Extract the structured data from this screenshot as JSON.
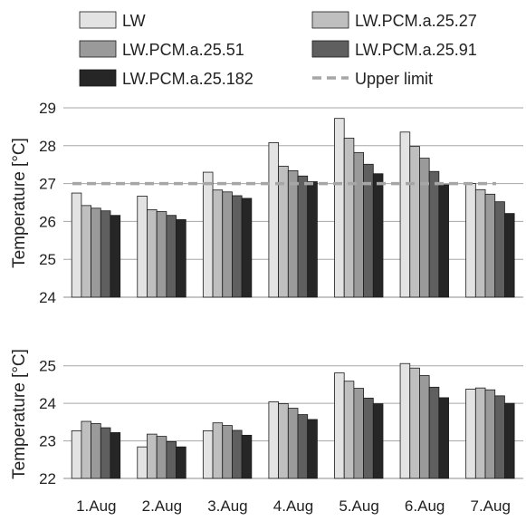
{
  "legend": {
    "entries": [
      {
        "label": "LW",
        "color": "#e3e3e3",
        "kind": "box"
      },
      {
        "label": "LW.PCM.a.25.27",
        "color": "#bfbfbf",
        "kind": "box"
      },
      {
        "label": "LW.PCM.a.25.51",
        "color": "#9a9a9a",
        "kind": "box"
      },
      {
        "label": "LW.PCM.a.25.91",
        "color": "#5f5f5f",
        "kind": "box"
      },
      {
        "label": "LW.PCM.a.25.182",
        "color": "#262626",
        "kind": "box"
      },
      {
        "label": "Upper limit",
        "color": "#a6a6a6",
        "kind": "dash"
      }
    ]
  },
  "chart_data": [
    {
      "type": "bar",
      "categories": [
        "1.Aug",
        "2.Aug",
        "3.Aug",
        "4.Aug",
        "5.Aug",
        "6.Aug",
        "7.Aug"
      ],
      "series": [
        {
          "name": "LW",
          "color": "#e3e3e3",
          "values": [
            26.75,
            26.67,
            27.3,
            28.08,
            28.72,
            28.36,
            27.0
          ]
        },
        {
          "name": "LW.PCM.a.25.27",
          "color": "#bfbfbf",
          "values": [
            26.42,
            26.31,
            26.83,
            27.46,
            28.2,
            27.98,
            26.84
          ]
        },
        {
          "name": "LW.PCM.a.25.51",
          "color": "#9a9a9a",
          "values": [
            26.35,
            26.26,
            26.78,
            27.34,
            27.82,
            27.67,
            26.72
          ]
        },
        {
          "name": "LW.PCM.a.25.91",
          "color": "#5f5f5f",
          "values": [
            26.28,
            26.16,
            26.68,
            27.2,
            27.51,
            27.32,
            26.52
          ]
        },
        {
          "name": "LW.PCM.a.25.182",
          "color": "#262626",
          "values": [
            26.16,
            26.05,
            26.61,
            27.05,
            27.26,
            26.97,
            26.21
          ]
        }
      ],
      "upper_limit": 27,
      "ylabel": "Temperature [°C]",
      "ylim": [
        24,
        29
      ],
      "yticks": [
        24,
        25,
        26,
        27,
        28,
        29
      ],
      "grid": true,
      "legend_position": "top"
    },
    {
      "type": "bar",
      "categories": [
        "1.Aug",
        "2.Aug",
        "3.Aug",
        "4.Aug",
        "5.Aug",
        "6.Aug",
        "7.Aug"
      ],
      "series": [
        {
          "name": "LW",
          "color": "#e3e3e3",
          "values": [
            23.27,
            22.84,
            23.27,
            24.04,
            24.81,
            25.06,
            24.38
          ]
        },
        {
          "name": "LW.PCM.a.25.27",
          "color": "#bfbfbf",
          "values": [
            23.52,
            23.18,
            23.48,
            23.99,
            24.59,
            24.94,
            24.41
          ]
        },
        {
          "name": "LW.PCM.a.25.51",
          "color": "#9a9a9a",
          "values": [
            23.46,
            23.12,
            23.41,
            23.87,
            24.4,
            24.74,
            24.36
          ]
        },
        {
          "name": "LW.PCM.a.25.91",
          "color": "#5f5f5f",
          "values": [
            23.35,
            22.98,
            23.28,
            23.7,
            24.14,
            24.43,
            24.2
          ]
        },
        {
          "name": "LW.PCM.a.25.182",
          "color": "#262626",
          "values": [
            23.22,
            22.84,
            23.15,
            23.57,
            23.99,
            24.15,
            24.0
          ]
        }
      ],
      "ylabel": "Temperature [°C]",
      "ylim": [
        22,
        25.5
      ],
      "yticks": [
        22,
        23,
        24,
        25
      ],
      "grid": true
    }
  ]
}
